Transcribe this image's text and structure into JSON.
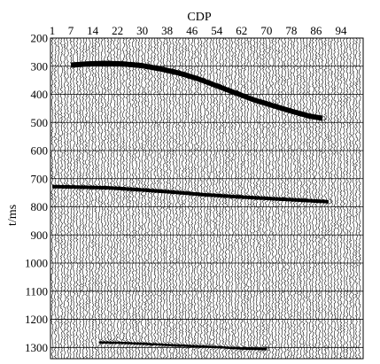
{
  "chart_data": {
    "type": "seismic-section",
    "title": "",
    "xlabel": "CDP",
    "ylabel": "t/ms",
    "x_tick_labels": [
      "1",
      "7",
      "14",
      "22",
      "30",
      "38",
      "46",
      "54",
      "62",
      "70",
      "78",
      "86",
      "94"
    ],
    "x_ticks": [
      1,
      7,
      14,
      22,
      30,
      38,
      46,
      54,
      62,
      70,
      78,
      86,
      94
    ],
    "xlim": [
      1,
      100
    ],
    "y_tick_labels": [
      "200",
      "300",
      "400",
      "500",
      "600",
      "700",
      "800",
      "900",
      "1000",
      "1100",
      "1200",
      "1300"
    ],
    "y_ticks": [
      200,
      300,
      400,
      500,
      600,
      700,
      800,
      900,
      1000,
      1100,
      1200,
      1300
    ],
    "ylim": [
      200,
      1340
    ],
    "y_axis_reversed": true,
    "grid": "horizontal",
    "trace_count": 100,
    "series": [
      {
        "x": [
          7,
          12,
          18,
          24,
          30,
          36,
          42,
          48,
          54,
          60,
          66,
          72,
          78,
          84,
          88
        ],
        "y": [
          296,
          292,
          290,
          292,
          298,
          310,
          325,
          345,
          370,
          395,
          420,
          440,
          460,
          478,
          485
        ]
      },
      {
        "x": [
          1,
          10,
          20,
          30,
          40,
          50,
          60,
          70,
          80,
          90
        ],
        "y": [
          728,
          730,
          733,
          740,
          748,
          757,
          764,
          770,
          776,
          782
        ]
      },
      {
        "x": [
          16,
          24,
          32,
          40,
          48,
          56,
          62,
          70
        ],
        "y": [
          1282,
          1284,
          1288,
          1292,
          1296,
          1300,
          1304,
          1306
        ]
      }
    ]
  }
}
